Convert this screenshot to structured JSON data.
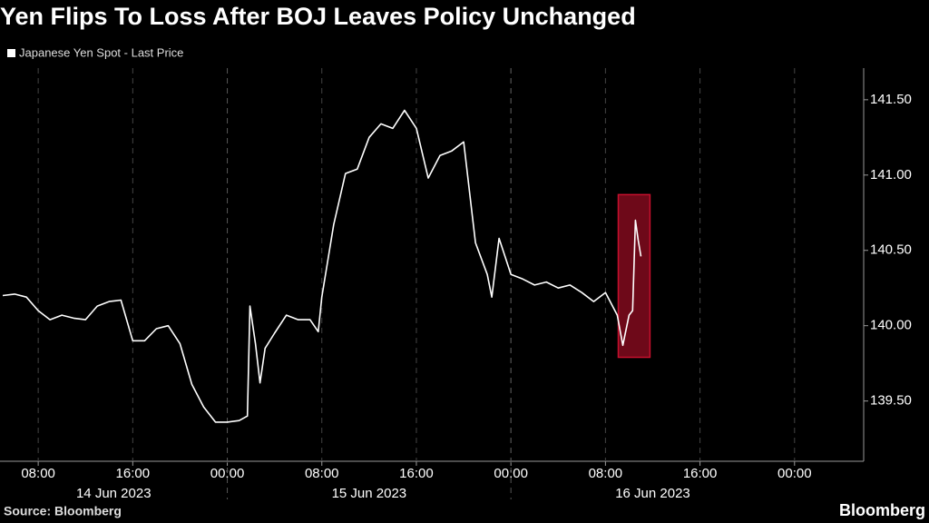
{
  "chart_data": {
    "type": "line",
    "title": "Yen Flips To Loss After BOJ Leaves Policy Unchanged",
    "source": "Source: Bloomberg",
    "brand": "Bloomberg",
    "x": [
      "2023-06-14 05:00",
      "2023-06-14 06:00",
      "2023-06-14 07:00",
      "2023-06-14 08:00",
      "2023-06-14 09:00",
      "2023-06-14 10:00",
      "2023-06-14 11:00",
      "2023-06-14 12:00",
      "2023-06-14 13:00",
      "2023-06-14 14:00",
      "2023-06-14 15:00",
      "2023-06-14 16:00",
      "2023-06-14 17:00",
      "2023-06-14 18:00",
      "2023-06-14 19:00",
      "2023-06-14 20:00",
      "2023-06-14 21:00",
      "2023-06-14 22:00",
      "2023-06-14 23:00",
      "2023-06-15 00:00",
      "2023-06-15 01:00",
      "2023-06-15 01:42",
      "2023-06-15 01:55",
      "2023-06-15 02:23",
      "2023-06-15 02:46",
      "2023-06-15 03:12",
      "2023-06-15 04:00",
      "2023-06-15 05:00",
      "2023-06-15 06:00",
      "2023-06-15 07:00",
      "2023-06-15 07:42",
      "2023-06-15 08:00",
      "2023-06-15 09:00",
      "2023-06-15 10:00",
      "2023-06-15 11:00",
      "2023-06-15 12:00",
      "2023-06-15 13:00",
      "2023-06-15 14:00",
      "2023-06-15 15:00",
      "2023-06-15 16:00",
      "2023-06-15 17:00",
      "2023-06-15 18:00",
      "2023-06-15 19:00",
      "2023-06-15 20:00",
      "2023-06-15 21:00",
      "2023-06-15 22:00",
      "2023-06-15 22:23",
      "2023-06-15 23:00",
      "2023-06-16 00:00",
      "2023-06-16 01:00",
      "2023-06-16 02:00",
      "2023-06-16 03:00",
      "2023-06-16 04:00",
      "2023-06-16 05:00",
      "2023-06-16 06:00",
      "2023-06-16 07:00",
      "2023-06-16 08:00",
      "2023-06-16 09:00",
      "2023-06-16 09:28",
      "2023-06-16 10:00",
      "2023-06-16 10:18",
      "2023-06-16 10:32",
      "2023-06-16 10:46",
      "2023-06-16 11:00"
    ],
    "series": [
      {
        "name": "Japanese Yen Spot - Last Price",
        "color": "#ffffff",
        "values": [
          140.2,
          140.21,
          140.19,
          140.1,
          140.04,
          140.07,
          140.05,
          140.04,
          140.13,
          140.16,
          140.17,
          139.9,
          139.9,
          139.98,
          140.0,
          139.88,
          139.61,
          139.46,
          139.36,
          139.36,
          139.37,
          139.4,
          140.13,
          139.88,
          139.62,
          139.85,
          139.95,
          140.07,
          140.04,
          140.04,
          139.96,
          140.19,
          140.67,
          141.01,
          141.04,
          141.25,
          141.34,
          141.31,
          141.43,
          141.31,
          140.98,
          141.13,
          141.16,
          141.22,
          140.55,
          140.34,
          140.19,
          140.58,
          140.34,
          140.31,
          140.27,
          140.29,
          140.25,
          140.27,
          140.22,
          140.16,
          140.22,
          140.07,
          139.87,
          140.07,
          140.1,
          140.7,
          140.57,
          140.46
        ]
      }
    ],
    "xlim": [
      "2023-06-14 04:46",
      "2023-06-17 05:51"
    ],
    "xticks": [
      {
        "value": "2023-06-14 08:00",
        "label": "08:00"
      },
      {
        "value": "2023-06-14 16:00",
        "label": "16:00"
      },
      {
        "value": "2023-06-15 00:00",
        "label": "00:00"
      },
      {
        "value": "2023-06-15 08:00",
        "label": "08:00"
      },
      {
        "value": "2023-06-15 16:00",
        "label": "16:00"
      },
      {
        "value": "2023-06-16 00:00",
        "label": "00:00"
      },
      {
        "value": "2023-06-16 08:00",
        "label": "08:00"
      },
      {
        "value": "2023-06-16 16:00",
        "label": "16:00"
      },
      {
        "value": "2023-06-17 00:00",
        "label": "00:00"
      }
    ],
    "x_groups": [
      {
        "value": "2023-06-14",
        "label": "14 Jun 2023"
      },
      {
        "value": "2023-06-15",
        "label": "15 Jun 2023"
      },
      {
        "value": "2023-06-16",
        "label": "16 Jun 2023"
      }
    ],
    "ylim": [
      139.1,
      141.71
    ],
    "yticks": [
      {
        "value": 139.5,
        "label": "139.50"
      },
      {
        "value": 140,
        "label": "140.00"
      },
      {
        "value": 140.5,
        "label": "140.50"
      },
      {
        "value": 141,
        "label": "141.00"
      },
      {
        "value": 141.5,
        "label": "141.50"
      }
    ],
    "highlight": {
      "x": [
        "2023-06-16 09:05",
        "2023-06-16 11:46"
      ],
      "y": [
        139.79,
        140.87
      ],
      "color": "#c8102e"
    },
    "grid": true
  }
}
